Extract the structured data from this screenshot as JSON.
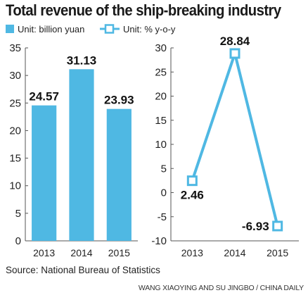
{
  "title": "Total revenue of the ship-breaking industry",
  "source": "Source: National Bureau of Statistics",
  "credit": "WANG XIAOYING AND SU JINGBO / CHINA DAILY",
  "colors": {
    "accent": "#4fb8e3",
    "axis": "#555555",
    "text": "#1a1a1a"
  },
  "chart_data": [
    {
      "type": "bar",
      "legend": "Unit:  billion yuan",
      "categories": [
        "2013",
        "2014",
        "2015"
      ],
      "values": [
        24.57,
        31.13,
        23.93
      ],
      "value_labels": [
        "24.57",
        "31.13",
        "23.93"
      ],
      "ylim": [
        0,
        35
      ],
      "yticks": [
        "0",
        "5",
        "10",
        "15",
        "20",
        "25",
        "30",
        "35"
      ],
      "grid": false,
      "legend_position": "top-left"
    },
    {
      "type": "line",
      "legend": "Unit: % y-o-y",
      "categories": [
        "2013",
        "2014",
        "2015"
      ],
      "values": [
        2.46,
        28.84,
        -6.93
      ],
      "value_labels": [
        "2.46",
        "28.84",
        "-6.93"
      ],
      "ylim": [
        -10,
        30
      ],
      "yticks": [
        "-10",
        "-5",
        "0",
        "5",
        "10",
        "15",
        "20",
        "25",
        "30"
      ],
      "grid": false,
      "legend_position": "top"
    }
  ]
}
